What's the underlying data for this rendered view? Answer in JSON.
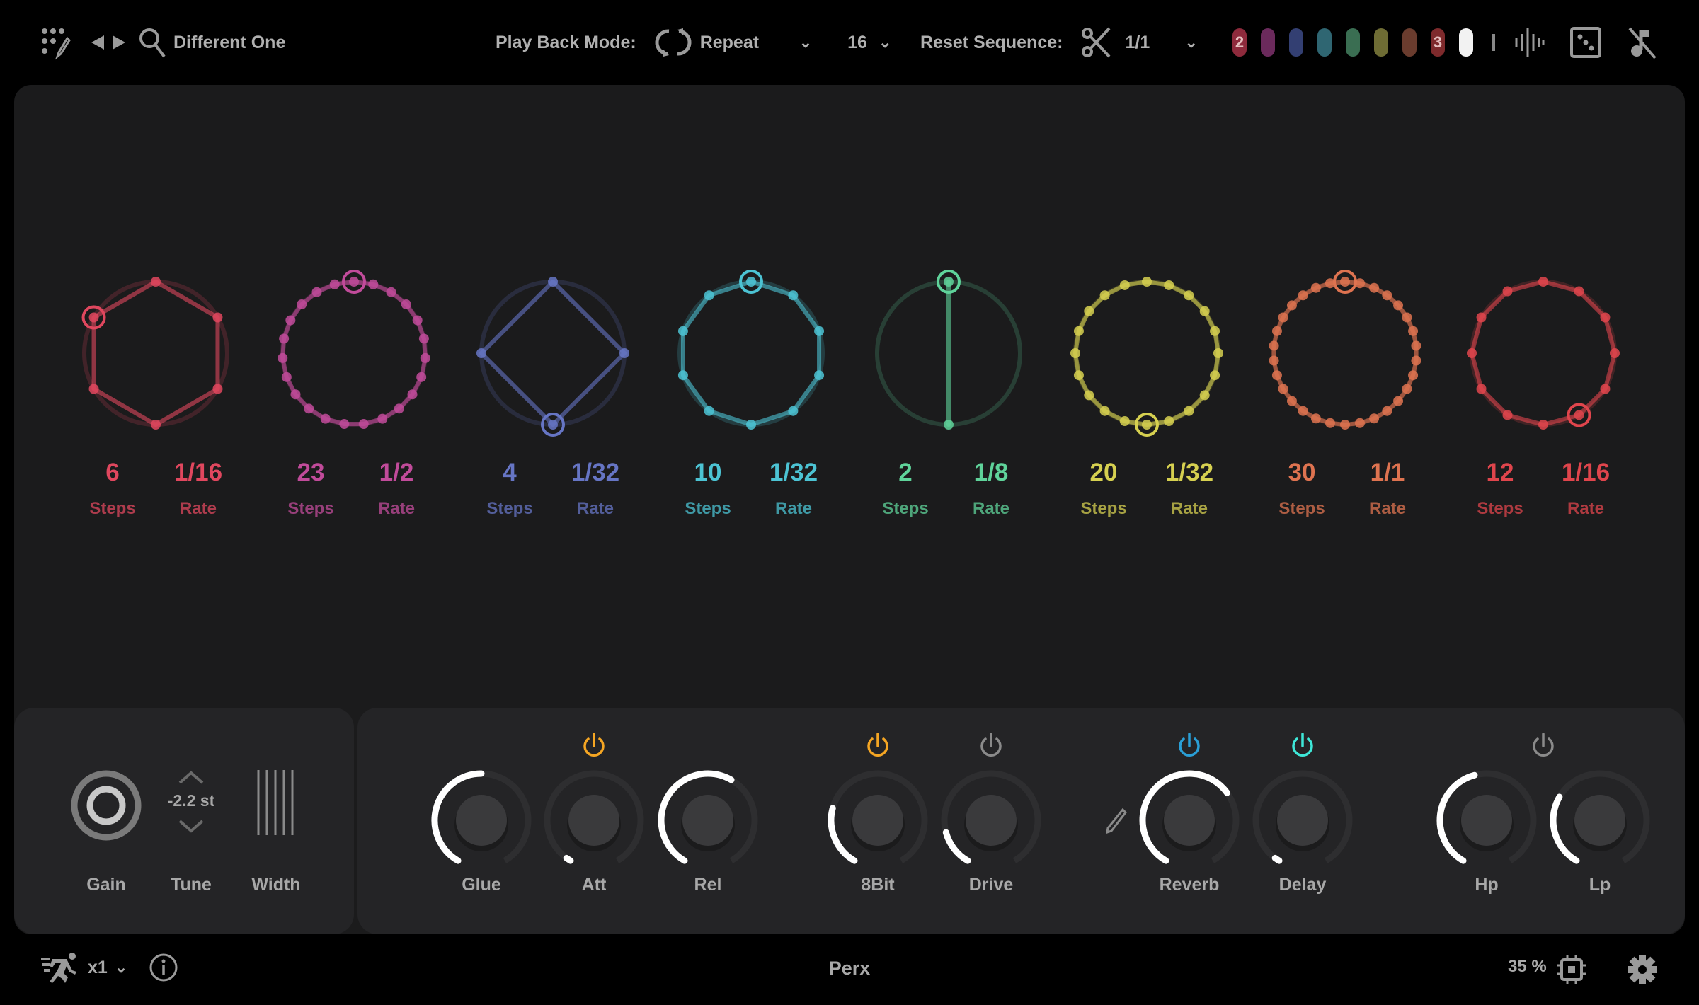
{
  "topbar": {
    "preset_name": "Different One",
    "playback_label": "Play Back Mode:",
    "playback_value": "Repeat",
    "length_value": "16",
    "reset_label": "Reset Sequence:",
    "reset_value": "1/1",
    "pills": [
      {
        "color": "#8e2a3c",
        "text": "2"
      },
      {
        "color": "#6b2a5c",
        "text": ""
      },
      {
        "color": "#333f72",
        "text": ""
      },
      {
        "color": "#2f6672",
        "text": ""
      },
      {
        "color": "#3a6e52",
        "text": ""
      },
      {
        "color": "#6e6c34",
        "text": ""
      },
      {
        "color": "#6a3c2e",
        "text": ""
      },
      {
        "color": "#7e2a2c",
        "text": "3"
      },
      {
        "color": "#f2f2f2",
        "text": ""
      }
    ],
    "icons": [
      "grid-edit-icon",
      "prev-next-icon",
      "search-icon",
      "repeat-icon",
      "chevron-down-icon",
      "scissors-icon",
      "waveform-icon",
      "dice-icon",
      "mute-note-icon"
    ]
  },
  "sequencers": [
    {
      "steps": "6",
      "rate": "1/16",
      "steps_label": "Steps",
      "rate_label": "Rate",
      "color": "#e0475e",
      "active_step": 5
    },
    {
      "steps": "23",
      "rate": "1/2",
      "steps_label": "Steps",
      "rate_label": "Rate",
      "color": "#c14b9a",
      "active_step": 0
    },
    {
      "steps": "4",
      "rate": "1/32",
      "steps_label": "Steps",
      "rate_label": "Rate",
      "color": "#6675c4",
      "active_step": 2
    },
    {
      "steps": "10",
      "rate": "1/32",
      "steps_label": "Steps",
      "rate_label": "Rate",
      "color": "#4cc3d3",
      "active_step": 0
    },
    {
      "steps": "2",
      "rate": "1/8",
      "steps_label": "Steps",
      "rate_label": "Rate",
      "color": "#5fd39a",
      "active_step": 0
    },
    {
      "steps": "20",
      "rate": "1/32",
      "steps_label": "Steps",
      "rate_label": "Rate",
      "color": "#d6d050",
      "active_step": 10
    },
    {
      "steps": "30",
      "rate": "1/1",
      "steps_label": "Steps",
      "rate_label": "Rate",
      "color": "#de7350",
      "active_step": 0
    },
    {
      "steps": "12",
      "rate": "1/16",
      "steps_label": "Steps",
      "rate_label": "Rate",
      "color": "#e0454c",
      "active_step": 5
    }
  ],
  "voice": {
    "gain_label": "Gain",
    "tune_label": "Tune",
    "tune_value": "-2.2 st",
    "width_label": "Width"
  },
  "knobs": [
    {
      "label": "Glue",
      "value": 0.5
    },
    {
      "label": "Att",
      "value": 0.02
    },
    {
      "label": "Rel",
      "value": 0.6
    },
    {
      "label": "8Bit",
      "value": 0.25
    },
    {
      "label": "Drive",
      "value": 0.15
    },
    {
      "label": "Reverb",
      "value": 0.68
    },
    {
      "label": "Delay",
      "value": 0.02
    },
    {
      "label": "Hp",
      "value": 0.45
    },
    {
      "label": "Lp",
      "value": 0.3
    }
  ],
  "power_buttons": [
    {
      "target": "Glue/Att/Rel",
      "on": true,
      "color": "#f5a623"
    },
    {
      "target": "8Bit",
      "on": true,
      "color": "#f5a623"
    },
    {
      "target": "Drive",
      "on": false,
      "color": "#8a8a8a"
    },
    {
      "target": "Reverb",
      "on": true,
      "color": "#2a9fd6"
    },
    {
      "target": "Delay",
      "on": true,
      "color": "#3ee8d8"
    },
    {
      "target": "Hp/Lp",
      "on": false,
      "color": "#8a8a8a"
    }
  ],
  "footer": {
    "speed": "x1",
    "kit_name": "Perx",
    "cpu": "35 %"
  }
}
